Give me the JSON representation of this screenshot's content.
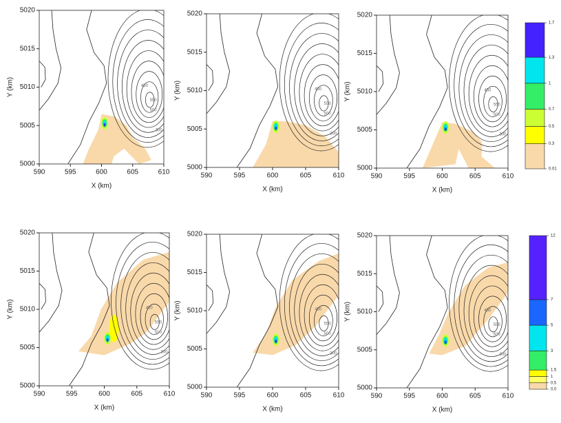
{
  "chart_data": [
    {
      "type": "contour",
      "xlabel": "X (km)",
      "ylabel": "Y (km)",
      "xlim": [
        590,
        610
      ],
      "ylim": [
        5000,
        5020
      ],
      "xticks": [
        590,
        595,
        600,
        605,
        610
      ],
      "yticks": [
        5000,
        5005,
        5010,
        5015,
        5020
      ],
      "contour_labels": [
        450,
        550,
        500,
        300
      ]
    },
    {
      "type": "contour",
      "xlabel": "X (km)",
      "ylabel": "Y (km)",
      "xlim": [
        590,
        610
      ],
      "ylim": [
        5000,
        5020
      ],
      "xticks": [
        590,
        595,
        600,
        605,
        610
      ],
      "yticks": [
        5000,
        5005,
        5010,
        5015,
        5020
      ],
      "contour_labels": [
        450,
        550,
        500,
        300
      ]
    },
    {
      "type": "contour",
      "xlabel": "X (km)",
      "ylabel": "Y (km)",
      "xlim": [
        590,
        610
      ],
      "ylim": [
        5000,
        5020
      ],
      "xticks": [
        590,
        595,
        600,
        605,
        610
      ],
      "yticks": [
        5000,
        5005,
        5010,
        5015,
        5020
      ],
      "contour_labels": [
        450,
        550,
        500,
        300
      ]
    },
    {
      "type": "contour",
      "xlabel": "X (km)",
      "ylabel": "Y (km)",
      "xlim": [
        590,
        610
      ],
      "ylim": [
        5000,
        5020
      ],
      "xticks": [
        590,
        595,
        600,
        605,
        610
      ],
      "yticks": [
        5000,
        5005,
        5010,
        5015,
        5020
      ],
      "contour_labels": [
        450,
        550,
        500,
        300
      ]
    },
    {
      "type": "contour",
      "xlabel": "X (km)",
      "ylabel": "Y (km)",
      "xlim": [
        590,
        610
      ],
      "ylim": [
        5000,
        5020
      ],
      "xticks": [
        590,
        595,
        600,
        605,
        610
      ],
      "yticks": [
        5000,
        5005,
        5010,
        5015,
        5020
      ],
      "contour_labels": [
        450,
        550,
        500,
        300
      ]
    },
    {
      "type": "contour",
      "xlabel": "X (km)",
      "ylabel": "Y (km)",
      "xlim": [
        590,
        610
      ],
      "ylim": [
        5000,
        5020
      ],
      "xticks": [
        590,
        595,
        600,
        605,
        610
      ],
      "yticks": [
        5000,
        5005,
        5010,
        5015,
        5020
      ],
      "contour_labels": [
        450,
        550,
        500,
        300
      ]
    },
    {
      "type": "colorbar",
      "levels": [
        0.01,
        0.3,
        0.5,
        0.7,
        1,
        1.3,
        1.7
      ],
      "colors": [
        "#f9d9aa",
        "#ffff00",
        "#ccff33",
        "#33ee66",
        "#00e5ee",
        "#4422ff"
      ]
    },
    {
      "type": "colorbar",
      "levels": [
        {
          "value": 0,
          "label": "0.0"
        },
        0.5,
        1,
        1.5,
        3,
        5,
        7,
        12
      ],
      "colors": [
        "#f9d9aa",
        "#ffff66",
        "#ffff00",
        "#33ee66",
        "#00e5ee",
        "#1a66ff",
        "#5522ff"
      ]
    }
  ]
}
